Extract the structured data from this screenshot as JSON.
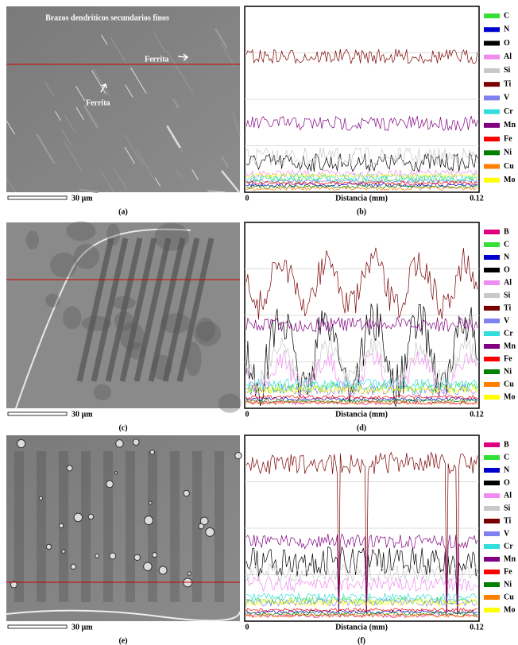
{
  "panels": [
    {
      "image": {
        "caption": "(a)",
        "scale_bar": "30 µm",
        "annotations": [
          "Brazos dendríticos secundarios finos",
          "Ferrita",
          "Ferrita"
        ]
      },
      "plot": {
        "caption": "(b)",
        "x_start": "0",
        "x_end": "0.12",
        "x_label": "Distancia (mm)",
        "legend": [
          {
            "name": "C",
            "color": "#33e033"
          },
          {
            "name": "N",
            "color": "#0000cc"
          },
          {
            "name": "O",
            "color": "#000000"
          },
          {
            "name": "Al",
            "color": "#f08cf0"
          },
          {
            "name": "Si",
            "color": "#c8c8c8"
          },
          {
            "name": "Ti",
            "color": "#7a0000"
          },
          {
            "name": "V",
            "color": "#8080f0"
          },
          {
            "name": "Cr",
            "color": "#33dddd"
          },
          {
            "name": "Mn",
            "color": "#800080"
          },
          {
            "name": "Fe",
            "color": "#ff0000"
          },
          {
            "name": "Ni",
            "color": "#008000"
          },
          {
            "name": "Cu",
            "color": "#ff8000"
          },
          {
            "name": "Mo",
            "color": "#ffff00"
          }
        ]
      }
    },
    {
      "image": {
        "caption": "(c)",
        "scale_bar": "30 µm",
        "annotations": []
      },
      "plot": {
        "caption": "(d)",
        "x_start": "0",
        "x_end": "0.12",
        "x_label": "Distancia (mm)",
        "legend": [
          {
            "name": "B",
            "color": "#e0007f"
          },
          {
            "name": "C",
            "color": "#33e033"
          },
          {
            "name": "N",
            "color": "#0000cc"
          },
          {
            "name": "O",
            "color": "#000000"
          },
          {
            "name": "Al",
            "color": "#f08cf0"
          },
          {
            "name": "Si",
            "color": "#c8c8c8"
          },
          {
            "name": "Ti",
            "color": "#7a0000"
          },
          {
            "name": "V",
            "color": "#8080f0"
          },
          {
            "name": "Cr",
            "color": "#33dddd"
          },
          {
            "name": "Mn",
            "color": "#800080"
          },
          {
            "name": "Fe",
            "color": "#ff0000"
          },
          {
            "name": "Ni",
            "color": "#008000"
          },
          {
            "name": "Cu",
            "color": "#ff8000"
          },
          {
            "name": "Mo",
            "color": "#ffff00"
          }
        ]
      }
    },
    {
      "image": {
        "caption": "(e)",
        "scale_bar": "30 µm",
        "annotations": []
      },
      "plot": {
        "caption": "(f)",
        "x_start": "0",
        "x_end": "0.12",
        "x_label": "Distancia (mm)",
        "legend": [
          {
            "name": "B",
            "color": "#e0007f"
          },
          {
            "name": "C",
            "color": "#33e033"
          },
          {
            "name": "N",
            "color": "#0000cc"
          },
          {
            "name": "O",
            "color": "#000000"
          },
          {
            "name": "Al",
            "color": "#f08cf0"
          },
          {
            "name": "Si",
            "color": "#c8c8c8"
          },
          {
            "name": "Ti",
            "color": "#7a0000"
          },
          {
            "name": "V",
            "color": "#8080f0"
          },
          {
            "name": "Cr",
            "color": "#33dddd"
          },
          {
            "name": "Mn",
            "color": "#800080"
          },
          {
            "name": "Fe",
            "color": "#ff0000"
          },
          {
            "name": "Ni",
            "color": "#008000"
          },
          {
            "name": "Cu",
            "color": "#ff8000"
          },
          {
            "name": "Mo",
            "color": "#ffff00"
          }
        ]
      }
    }
  ]
}
